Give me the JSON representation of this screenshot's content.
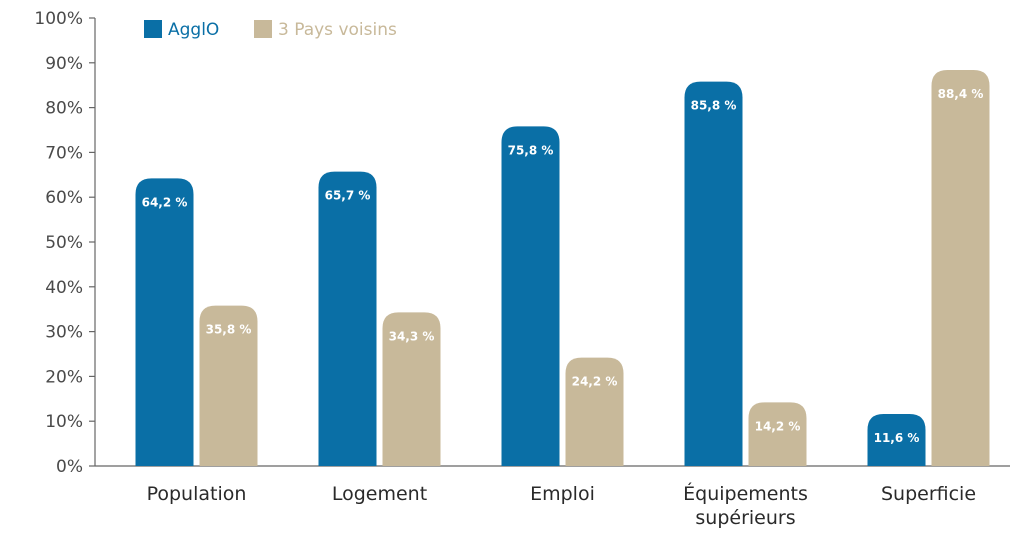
{
  "chart_data": {
    "type": "bar",
    "categories": [
      "Population",
      "Logement",
      "Emploi",
      "Équipements supérieurs",
      "Superficie"
    ],
    "category_lines": [
      [
        "Population"
      ],
      [
        "Logement"
      ],
      [
        "Emploi"
      ],
      [
        "Équipements",
        "supérieurs"
      ],
      [
        "Superficie"
      ]
    ],
    "series": [
      {
        "name": "AgglO",
        "color": "#0a6fa6",
        "values": [
          64.2,
          65.7,
          75.8,
          85.8,
          11.6
        ],
        "labels": [
          "64,2 %",
          "65,7 %",
          "75,8 %",
          "85,8 %",
          "11,6 %"
        ]
      },
      {
        "name": "3 Pays voisins",
        "color": "#c8b99a",
        "values": [
          35.8,
          34.3,
          24.2,
          14.2,
          88.4
        ],
        "labels": [
          "35,8 %",
          "34,3 %",
          "24,2 %",
          "14,2 %",
          "88,4 %"
        ]
      }
    ],
    "ylim": [
      0,
      100
    ],
    "yticks": [
      "0%",
      "10%",
      "20%",
      "30%",
      "40%",
      "50%",
      "60%",
      "70%",
      "80%",
      "90%",
      "100%"
    ],
    "grid": false,
    "legend_position": "top-left",
    "title": "",
    "xlabel": "",
    "ylabel": ""
  }
}
